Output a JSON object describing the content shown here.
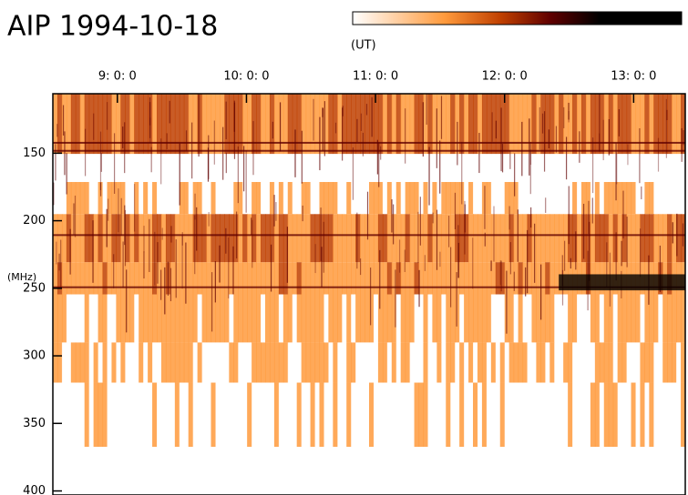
{
  "chart_data": {
    "type": "spectrogram",
    "title": "AIP 1994-10-18",
    "x_label": "(UT)",
    "y_label": "(MHz)",
    "xlim": [
      8.5,
      13.4
    ],
    "xticks": [
      {
        "value": 9,
        "label": "9: 0: 0"
      },
      {
        "value": 10,
        "label": "10: 0: 0"
      },
      {
        "value": 11,
        "label": "11: 0: 0"
      },
      {
        "value": 12,
        "label": "12: 0: 0"
      },
      {
        "value": 13,
        "label": "13: 0: 0"
      }
    ],
    "ylim": [
      403,
      106
    ],
    "yticks": [
      150,
      200,
      250,
      300,
      350,
      400
    ],
    "colormap": [
      "#ffffff",
      "#ff9a3c",
      "#c04000",
      "#600000",
      "#000000"
    ]
  }
}
